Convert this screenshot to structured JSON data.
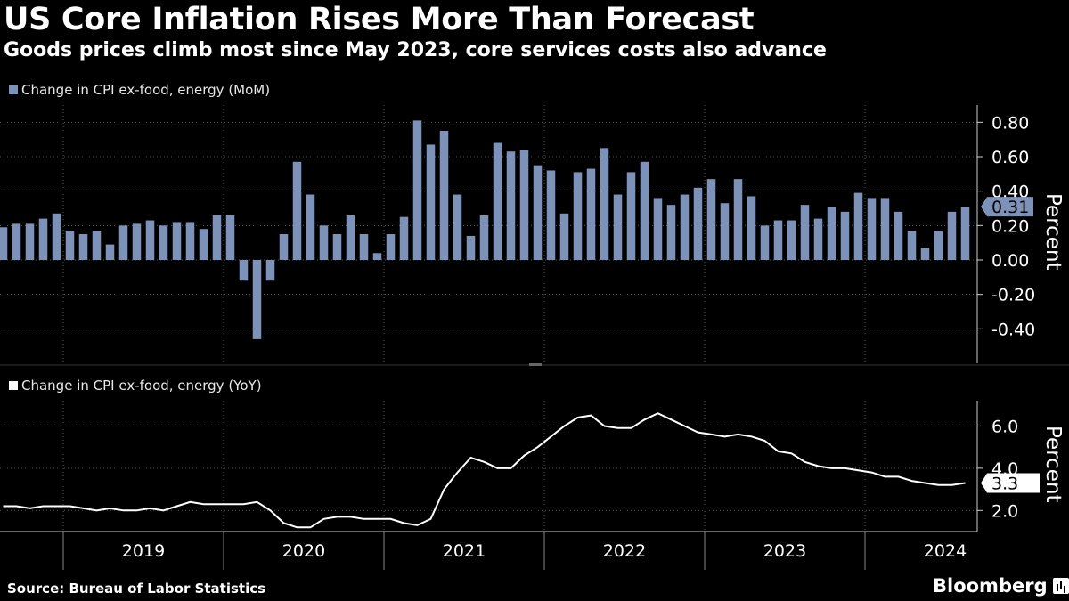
{
  "title": "US Core Inflation Rises More Than Forecast",
  "subtitle": "Goods prices climb most since May 2023, core services costs also advance",
  "source": "Source: Bureau of Labor Statistics",
  "brand": "Bloomberg",
  "chart_data": [
    {
      "type": "bar",
      "legend": "Change in CPI ex-food, energy (MoM)",
      "ylabel": "Percent",
      "ylim": [
        -0.6,
        0.9
      ],
      "yticks": [
        "0.80",
        "0.60",
        "0.40",
        "0.20",
        "0.00",
        "-0.20",
        "-0.40"
      ],
      "ytick_values": [
        0.8,
        0.6,
        0.4,
        0.2,
        0.0,
        -0.2,
        -0.4
      ],
      "latest_label": "0.31",
      "color": "#7d92b8",
      "start": "2018-08",
      "values": [
        0.19,
        0.21,
        0.21,
        0.24,
        0.27,
        0.17,
        0.15,
        0.17,
        0.09,
        0.2,
        0.21,
        0.23,
        0.2,
        0.22,
        0.22,
        0.18,
        0.26,
        0.26,
        -0.12,
        -0.46,
        -0.12,
        0.15,
        0.57,
        0.38,
        0.2,
        0.15,
        0.26,
        0.15,
        0.04,
        0.15,
        0.25,
        0.81,
        0.67,
        0.75,
        0.38,
        0.14,
        0.26,
        0.68,
        0.63,
        0.64,
        0.55,
        0.52,
        0.27,
        0.51,
        0.53,
        0.65,
        0.38,
        0.51,
        0.57,
        0.36,
        0.32,
        0.38,
        0.42,
        0.47,
        0.33,
        0.47,
        0.37,
        0.2,
        0.23,
        0.23,
        0.32,
        0.24,
        0.31,
        0.28,
        0.39,
        0.36,
        0.36,
        0.28,
        0.17,
        0.07,
        0.17,
        0.28,
        0.31
      ]
    },
    {
      "type": "line",
      "legend": "Change in CPI ex-food, energy (YoY)",
      "ylabel": "Percent",
      "ylim": [
        1.0,
        7.2
      ],
      "yticks": [
        "6.0",
        "4.0",
        "2.0"
      ],
      "ytick_values": [
        6.0,
        4.0,
        2.0
      ],
      "latest_label": "3.3",
      "color": "#ffffff",
      "start": "2018-08",
      "values": [
        2.2,
        2.2,
        2.1,
        2.2,
        2.2,
        2.2,
        2.1,
        2.0,
        2.1,
        2.0,
        2.0,
        2.1,
        2.0,
        2.2,
        2.4,
        2.3,
        2.3,
        2.3,
        2.3,
        2.4,
        2.0,
        1.4,
        1.2,
        1.2,
        1.6,
        1.7,
        1.7,
        1.6,
        1.6,
        1.6,
        1.4,
        1.3,
        1.6,
        3.0,
        3.8,
        4.5,
        4.3,
        4.0,
        4.0,
        4.6,
        5.0,
        5.5,
        6.0,
        6.4,
        6.5,
        6.0,
        5.9,
        5.9,
        6.3,
        6.6,
        6.3,
        6.0,
        5.7,
        5.6,
        5.5,
        5.6,
        5.5,
        5.3,
        4.8,
        4.7,
        4.3,
        4.1,
        4.0,
        4.0,
        3.9,
        3.8,
        3.6,
        3.6,
        3.4,
        3.3,
        3.2,
        3.2,
        3.3
      ]
    }
  ],
  "x_axis": {
    "years": [
      "2019",
      "2020",
      "2021",
      "2022",
      "2023",
      "2024"
    ]
  }
}
